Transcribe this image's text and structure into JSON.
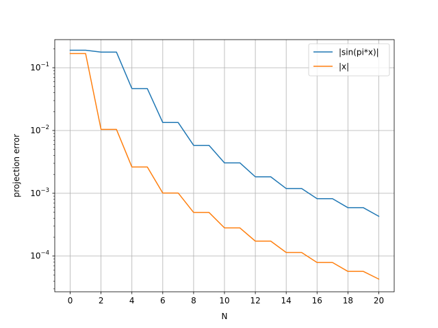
{
  "chart_data": {
    "type": "line",
    "title": "",
    "xlabel": "N",
    "ylabel": "projection error",
    "xlim": [
      -1,
      21
    ],
    "ylim": [
      2.7e-05,
      0.28
    ],
    "yscale": "log",
    "grid": true,
    "legend_position": "top-right",
    "x_ticks": [
      0,
      2,
      4,
      6,
      8,
      10,
      12,
      14,
      16,
      18,
      20
    ],
    "x_tick_labels": [
      "0",
      "2",
      "4",
      "6",
      "8",
      "10",
      "12",
      "14",
      "16",
      "18",
      "20"
    ],
    "y_ticks": [
      {
        "value": 0.1,
        "base": "10",
        "exp": "−1"
      },
      {
        "value": 0.01,
        "base": "10",
        "exp": "−2"
      },
      {
        "value": 0.001,
        "base": "10",
        "exp": "−3"
      },
      {
        "value": 0.0001,
        "base": "10",
        "exp": "−4"
      }
    ],
    "x": [
      0,
      1,
      2,
      3,
      4,
      5,
      6,
      7,
      8,
      9,
      10,
      11,
      12,
      13,
      14,
      15,
      16,
      17,
      18,
      19,
      20
    ],
    "series": [
      {
        "name": "|sin(pi*x)|",
        "color": "#1f77b4",
        "values": [
          0.19,
          0.19,
          0.177,
          0.177,
          0.0465,
          0.0465,
          0.0134,
          0.0134,
          0.0058,
          0.0058,
          0.00305,
          0.00305,
          0.00183,
          0.00183,
          0.00119,
          0.00119,
          0.00082,
          0.00082,
          0.00059,
          0.00059,
          0.00043
        ]
      },
      {
        "name": "|x|",
        "color": "#ff7f0e",
        "values": [
          0.168,
          0.168,
          0.0104,
          0.0104,
          0.00262,
          0.00262,
          0.00101,
          0.00101,
          0.000495,
          0.000495,
          0.000281,
          0.000281,
          0.000173,
          0.000173,
          0.000114,
          0.000114,
          7.9e-05,
          7.9e-05,
          5.7e-05,
          5.7e-05,
          4.3e-05
        ]
      }
    ]
  }
}
